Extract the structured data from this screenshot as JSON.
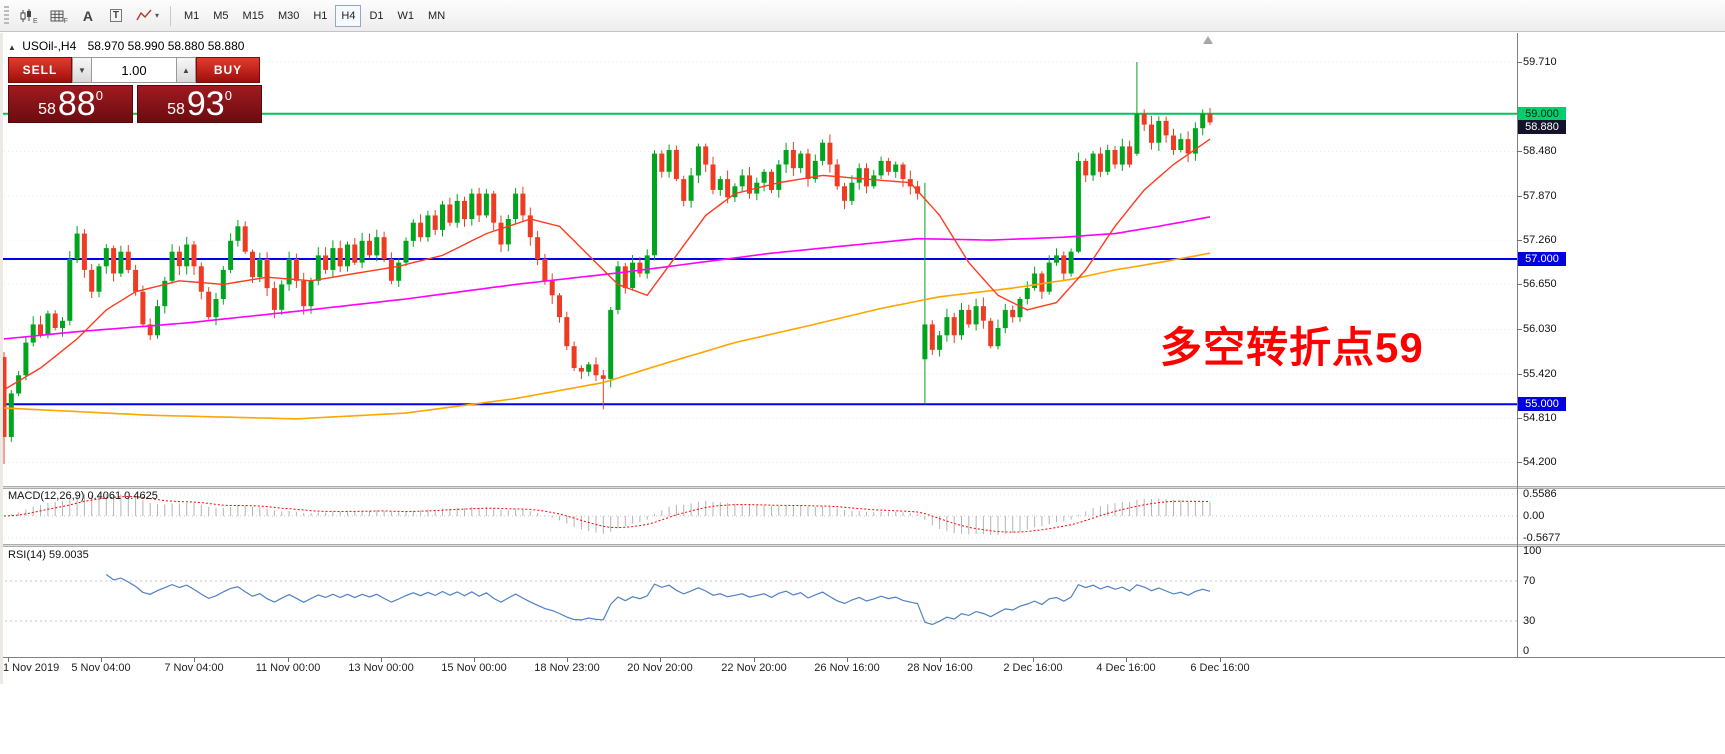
{
  "toolbar": {
    "icon_badge_1": "E",
    "icon_badge_2": "F",
    "font_tool_label": "A",
    "text_tool_label": "T",
    "timeframes": [
      "M1",
      "M5",
      "M15",
      "M30",
      "H1",
      "H4",
      "D1",
      "W1",
      "MN"
    ],
    "selected_timeframe": "H4"
  },
  "icons": {
    "tool_dropdown": "▾",
    "volume_down": "▼",
    "volume_up": "▲",
    "symbol_marker": "▲"
  },
  "header": {
    "symbol": "USOil-,H4",
    "quotes": "58.970 58.990 58.880 58.880"
  },
  "trade_panel": {
    "sell_label": "SELL",
    "buy_label": "BUY",
    "volume": "1.00",
    "sell_price_small": "58",
    "sell_price_big": "88",
    "sell_price_sup": "0",
    "buy_price_small": "58",
    "buy_price_big": "93",
    "buy_price_sup": "0"
  },
  "annotation": {
    "text": "多空转折点59",
    "color": "#ff0000"
  },
  "indicators": {
    "macd": {
      "label": "MACD(12,26,9) 0.4061 0.4625",
      "scale": [
        "0.5586",
        "0.00",
        "-0.5677"
      ]
    },
    "rsi": {
      "label": "RSI(14) 59.0035",
      "scale": [
        "100",
        "70",
        "30",
        "0"
      ]
    }
  },
  "time_axis": {
    "labels": [
      "1 Nov 2019",
      "5 Nov 04:00",
      "7 Nov 04:00",
      "11 Nov 00:00",
      "13 Nov 00:00",
      "15 Nov 00:00",
      "18 Nov 23:00",
      "20 Nov 20:00",
      "22 Nov 20:00",
      "26 Nov 16:00",
      "28 Nov 16:00",
      "2 Dec 16:00",
      "4 Dec 16:00",
      "6 Dec 16:00"
    ]
  },
  "price_axis": {
    "ticks": [
      "59.710",
      "58.480",
      "57.870",
      "57.260",
      "56.650",
      "56.030",
      "55.420",
      "54.810",
      "54.200"
    ],
    "tick_prices": [
      59.71,
      58.48,
      57.87,
      57.26,
      56.65,
      56.03,
      55.42,
      54.81,
      54.2
    ],
    "badges": [
      {
        "text": "59.000",
        "price": 59.0,
        "type": "green"
      },
      {
        "text": "58.880",
        "price": 58.88,
        "type": "dark"
      },
      {
        "text": "57.000",
        "price": 57.0,
        "type": "blue"
      },
      {
        "text": "55.000",
        "price": 55.0,
        "type": "blue"
      }
    ]
  },
  "colors": {
    "up": "#00a41e",
    "down": "#ee3c23",
    "ma_fast": "#ff3b1f",
    "ma_mid": "#ff00ff",
    "ma_slow": "#ffa500",
    "hline_green": "#00c25e",
    "hline_blue": "#0000ee",
    "macd_hist": "#b4b4b4",
    "macd_signal": "#ff0000",
    "rsi_line": "#4f81c7"
  },
  "chart_data": {
    "type": "candlestick",
    "symbol": "USOil-",
    "timeframe": "H4",
    "current_close": "58.880",
    "ylim": [
      53.89,
      60.11
    ],
    "first_open": 55.65,
    "closes": [
      54.55,
      55.15,
      55.4,
      55.85,
      56.1,
      55.95,
      56.25,
      56.05,
      56.15,
      57.0,
      57.35,
      56.85,
      56.55,
      56.9,
      57.15,
      56.8,
      57.1,
      56.85,
      56.55,
      56.1,
      55.95,
      56.35,
      56.7,
      57.1,
      56.9,
      57.2,
      56.9,
      56.55,
      56.2,
      56.45,
      56.85,
      57.25,
      57.45,
      57.1,
      56.75,
      57.0,
      56.6,
      56.3,
      56.65,
      57.0,
      56.7,
      56.35,
      56.7,
      57.05,
      56.85,
      57.15,
      56.9,
      57.2,
      56.95,
      57.25,
      57.05,
      57.3,
      57.0,
      56.7,
      56.95,
      57.25,
      57.5,
      57.3,
      57.6,
      57.4,
      57.75,
      57.5,
      57.8,
      57.55,
      57.9,
      57.6,
      57.9,
      57.5,
      57.2,
      57.55,
      57.9,
      57.6,
      57.3,
      57.0,
      56.7,
      56.5,
      56.2,
      55.8,
      55.5,
      55.45,
      55.55,
      55.4,
      55.35,
      56.3,
      56.9,
      56.6,
      56.95,
      56.8,
      57.05,
      58.45,
      58.2,
      58.5,
      58.1,
      57.8,
      58.15,
      58.55,
      58.3,
      57.95,
      58.1,
      57.85,
      58.0,
      58.15,
      57.9,
      58.05,
      58.2,
      57.95,
      58.3,
      58.5,
      58.25,
      58.45,
      58.1,
      58.35,
      58.6,
      58.3,
      58.0,
      57.8,
      58.05,
      58.25,
      58.0,
      58.15,
      58.35,
      58.2,
      58.3,
      58.1,
      58.0,
      57.9,
      56.1,
      55.75,
      55.95,
      56.2,
      55.95,
      56.3,
      56.1,
      56.35,
      56.15,
      55.8,
      56.05,
      56.3,
      56.2,
      56.45,
      56.6,
      56.8,
      56.55,
      56.95,
      57.05,
      56.8,
      57.1,
      58.35,
      58.15,
      58.45,
      58.2,
      58.5,
      58.3,
      58.55,
      58.3,
      59.0,
      58.85,
      58.6,
      58.9,
      58.7,
      58.5,
      58.65,
      58.45,
      58.8,
      59.0,
      58.88
    ],
    "candle_overrides": {
      "0": {
        "o": 55.65,
        "h": 55.72,
        "l": 54.18
      },
      "82": {
        "l": 54.93
      },
      "89": {
        "l": 56.98
      },
      "126": {
        "o": 55.62,
        "h": 58.05,
        "l": 55.0
      },
      "147": {
        "l": 57.08
      },
      "155": {
        "o": 58.45,
        "h": 59.71,
        "l": 58.42
      }
    },
    "hlines": [
      {
        "price": 59.0,
        "color_key": "hline_green"
      },
      {
        "price": 57.0,
        "color_key": "hline_blue"
      },
      {
        "price": 55.0,
        "color_key": "hline_blue"
      }
    ],
    "ma_fast": [
      [
        0,
        55.2
      ],
      [
        5,
        55.5
      ],
      [
        10,
        55.9
      ],
      [
        14,
        56.3
      ],
      [
        18,
        56.55
      ],
      [
        24,
        56.7
      ],
      [
        30,
        56.65
      ],
      [
        36,
        56.75
      ],
      [
        42,
        56.7
      ],
      [
        48,
        56.8
      ],
      [
        54,
        56.9
      ],
      [
        60,
        57.05
      ],
      [
        66,
        57.35
      ],
      [
        72,
        57.55
      ],
      [
        76,
        57.45
      ],
      [
        80,
        57.05
      ],
      [
        84,
        56.65
      ],
      [
        88,
        56.5
      ],
      [
        92,
        57.05
      ],
      [
        96,
        57.6
      ],
      [
        100,
        57.9
      ],
      [
        106,
        58.05
      ],
      [
        112,
        58.15
      ],
      [
        118,
        58.1
      ],
      [
        124,
        58.05
      ],
      [
        128,
        57.6
      ],
      [
        132,
        56.95
      ],
      [
        136,
        56.5
      ],
      [
        140,
        56.3
      ],
      [
        144,
        56.4
      ],
      [
        148,
        56.85
      ],
      [
        152,
        57.45
      ],
      [
        156,
        57.95
      ],
      [
        160,
        58.3
      ],
      [
        165,
        58.65
      ]
    ],
    "ma_mid": [
      [
        0,
        55.9
      ],
      [
        10,
        56.0
      ],
      [
        25,
        56.12
      ],
      [
        40,
        56.28
      ],
      [
        55,
        56.45
      ],
      [
        70,
        56.65
      ],
      [
        85,
        56.82
      ],
      [
        95,
        56.95
      ],
      [
        105,
        57.08
      ],
      [
        115,
        57.18
      ],
      [
        125,
        57.28
      ],
      [
        135,
        57.26
      ],
      [
        145,
        57.3
      ],
      [
        152,
        57.35
      ],
      [
        158,
        57.45
      ],
      [
        165,
        57.58
      ]
    ],
    "ma_slow": [
      [
        0,
        54.95
      ],
      [
        20,
        54.85
      ],
      [
        40,
        54.8
      ],
      [
        55,
        54.88
      ],
      [
        70,
        55.08
      ],
      [
        82,
        55.3
      ],
      [
        90,
        55.55
      ],
      [
        100,
        55.85
      ],
      [
        110,
        56.08
      ],
      [
        120,
        56.32
      ],
      [
        128,
        56.48
      ],
      [
        138,
        56.6
      ],
      [
        146,
        56.72
      ],
      [
        152,
        56.85
      ],
      [
        158,
        56.95
      ],
      [
        165,
        57.08
      ]
    ]
  }
}
